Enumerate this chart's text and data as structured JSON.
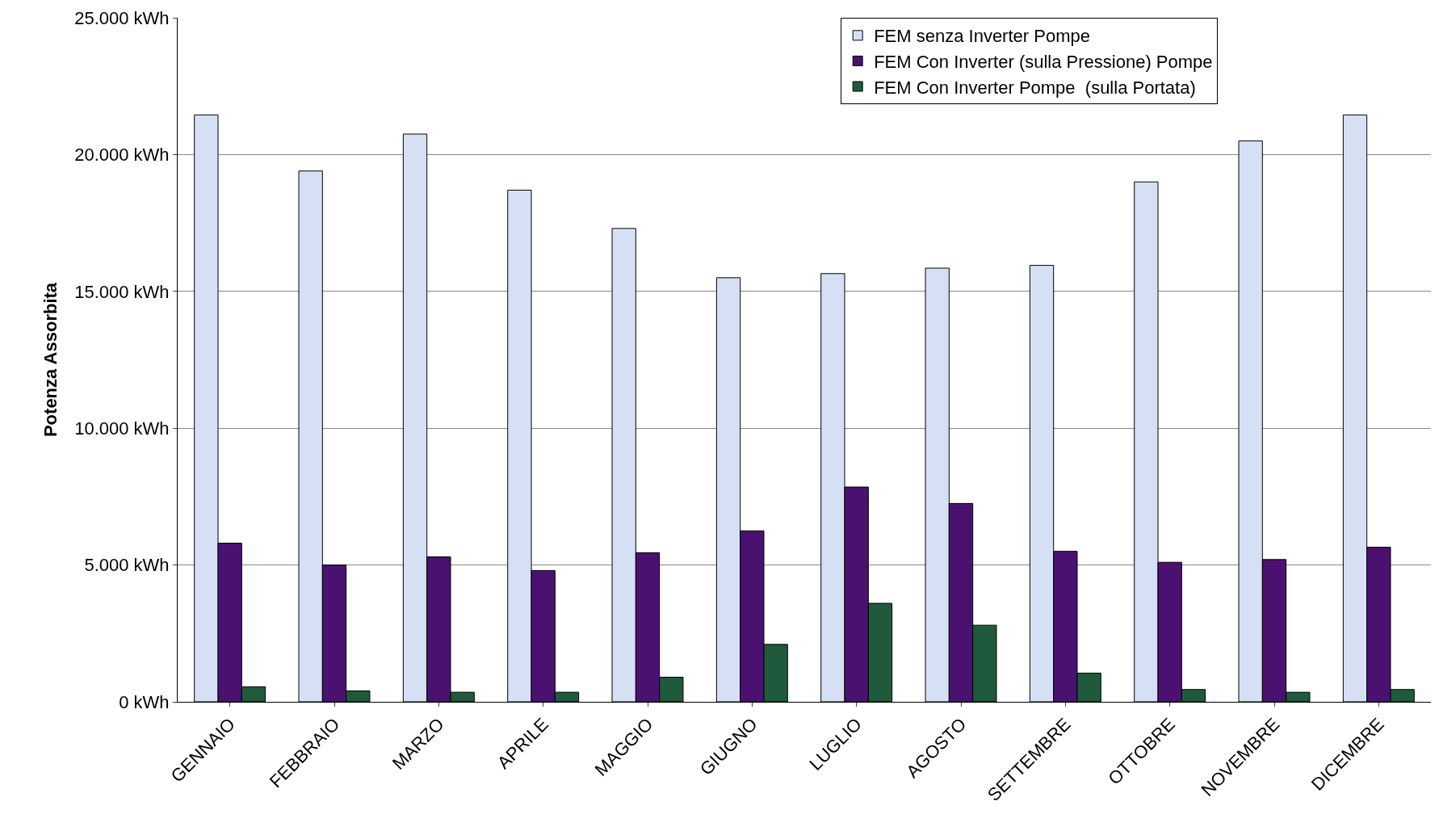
{
  "chart_data": {
    "type": "bar",
    "ylabel": "Potenza Assorbita",
    "categories": [
      "GENNAIO",
      "FEBBRAIO",
      "MARZO",
      "APRILE",
      "MAGGIO",
      "GIUGNO",
      "LUGLIO",
      "AGOSTO",
      "SETTEMBRE",
      "OTTOBRE",
      "NOVEMBRE",
      "DICEMBRE"
    ],
    "series": [
      {
        "name": "FEM senza Inverter Pompe",
        "color": "#d5e0f5",
        "values": [
          21450,
          19400,
          20750,
          18700,
          17300,
          15500,
          15650,
          15850,
          15950,
          19000,
          20500,
          21450
        ]
      },
      {
        "name": "FEM Con Inverter (sulla Pressione) Pompe",
        "color": "#4b1170",
        "values": [
          5800,
          5000,
          5300,
          4800,
          5450,
          6250,
          7850,
          7250,
          5500,
          5100,
          5200,
          5650
        ]
      },
      {
        "name": "FEM Con Inverter Pompe  (sulla Portata)",
        "color": "#1f5a3c",
        "values": [
          550,
          400,
          350,
          350,
          900,
          2100,
          3600,
          2800,
          1050,
          450,
          350,
          450
        ]
      }
    ],
    "ylim": [
      0,
      25000
    ],
    "yticks": [
      {
        "value": 0,
        "label": "0 kWh"
      },
      {
        "value": 5000,
        "label": "5.000 kWh"
      },
      {
        "value": 10000,
        "label": "10.000 kWh"
      },
      {
        "value": 15000,
        "label": "15.000 kWh"
      },
      {
        "value": 20000,
        "label": "20.000 kWh"
      },
      {
        "value": 25000,
        "label": "25.000 kWh"
      }
    ],
    "grid": "y",
    "legend": "top right"
  }
}
